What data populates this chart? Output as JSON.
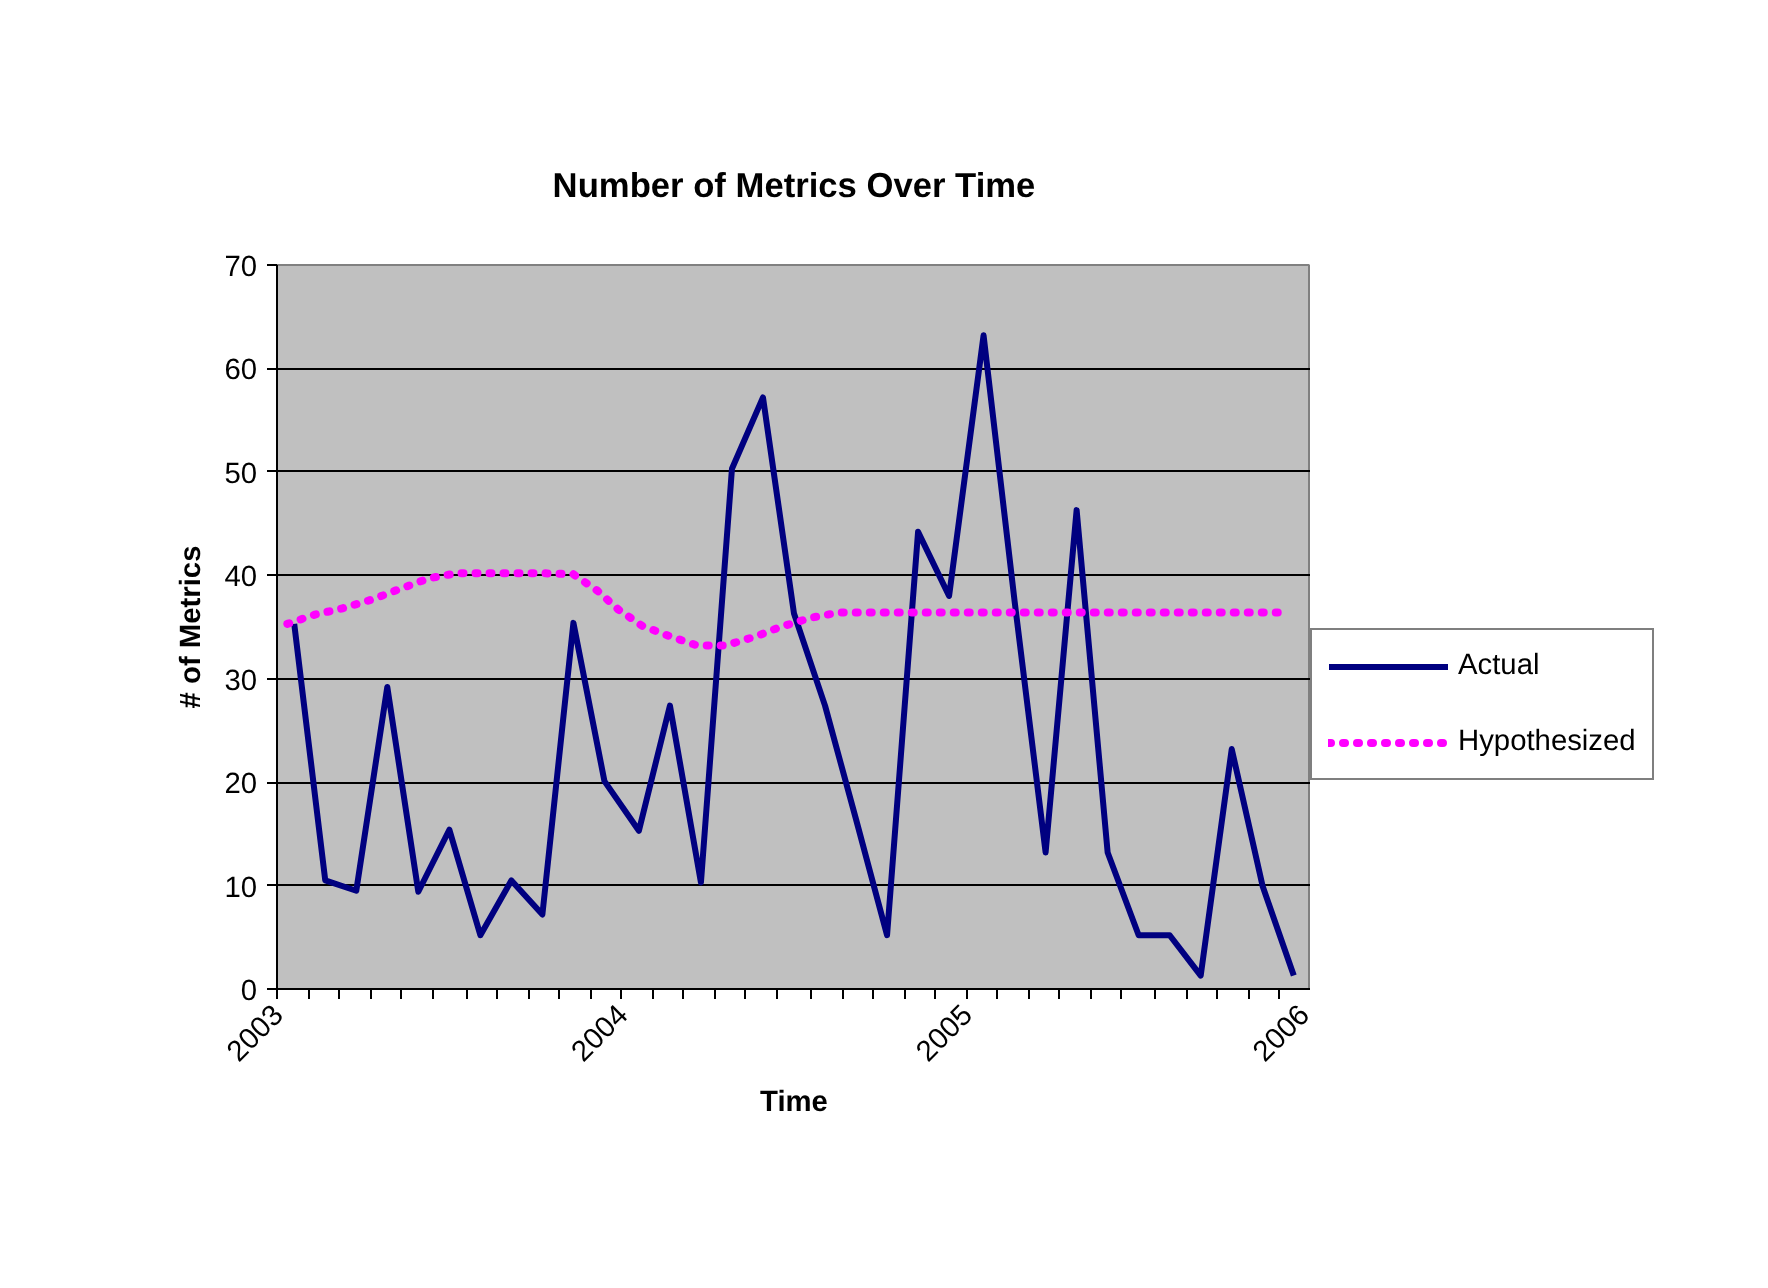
{
  "chart_data": {
    "type": "line",
    "title": "Number of Metrics Over Time",
    "xlabel": "Time",
    "ylabel": "# of Metrics",
    "xlim": [
      2003,
      2006
    ],
    "ylim": [
      0,
      70
    ],
    "yticks": [
      0,
      10,
      20,
      30,
      40,
      50,
      60,
      70
    ],
    "xticks": [
      2003,
      {
        "value": 2003.09,
        "label": null
      },
      {
        "value": 2003.18,
        "label": null
      },
      {
        "value": 2003.27,
        "label": null
      },
      {
        "value": 2003.36,
        "label": null
      },
      {
        "value": 2003.45,
        "label": null
      },
      {
        "value": 2003.55,
        "label": null
      },
      {
        "value": 2003.64,
        "label": null
      },
      {
        "value": 2003.73,
        "label": null
      },
      {
        "value": 2003.82,
        "label": null
      },
      {
        "value": 2003.91,
        "label": null
      },
      2004,
      {
        "value": 2004.09,
        "label": null
      },
      {
        "value": 2004.18,
        "label": null
      },
      {
        "value": 2004.27,
        "label": null
      },
      {
        "value": 2004.36,
        "label": null
      },
      {
        "value": 2004.45,
        "label": null
      },
      {
        "value": 2004.55,
        "label": null
      },
      {
        "value": 2004.64,
        "label": null
      },
      {
        "value": 2004.73,
        "label": null
      },
      {
        "value": 2004.82,
        "label": null
      },
      {
        "value": 2004.91,
        "label": null
      },
      2005,
      {
        "value": 2005.09,
        "label": null
      },
      {
        "value": 2005.18,
        "label": null
      },
      {
        "value": 2005.27,
        "label": null
      },
      {
        "value": 2005.36,
        "label": null
      },
      {
        "value": 2005.45,
        "label": null
      },
      {
        "value": 2005.55,
        "label": null
      },
      {
        "value": 2005.64,
        "label": null
      },
      {
        "value": 2005.73,
        "label": null
      },
      {
        "value": 2005.82,
        "label": null
      },
      {
        "value": 2005.91,
        "label": null
      },
      2006
    ],
    "grid": "y",
    "legend": "right",
    "marker": "none",
    "series": [
      {
        "name": "Actual",
        "color": "#000080",
        "line_style": "solid",
        "x": [
          2003.05,
          2003.14,
          2003.23,
          2003.32,
          2003.41,
          2003.5,
          2003.59,
          2003.68,
          2003.77,
          2003.86,
          2003.95,
          2004.05,
          2004.14,
          2004.23,
          2004.32,
          2004.41,
          2004.5,
          2004.59,
          2004.68,
          2004.77,
          2004.86,
          2004.95,
          2005.05,
          2005.14,
          2005.23,
          2005.32,
          2005.41,
          2005.5,
          2005.59,
          2005.68,
          2005.77,
          2005.86,
          2005.95
        ],
        "values": [
          35.3,
          10.5,
          9.5,
          29.2,
          9.4,
          15.4,
          5.2,
          10.5,
          7.2,
          35.4,
          20.1,
          15.3,
          27.4,
          10.3,
          50.3,
          57.2,
          36.3,
          27.4,
          16.4,
          5.2,
          44.2,
          38.0,
          63.2,
          37.5,
          13.2,
          46.3,
          13.2,
          5.2,
          5.2,
          1.3,
          23.2,
          9.9,
          1.3
        ]
      },
      {
        "name": "Hypothesized",
        "color": "#ff00ff",
        "line_style": "dotted",
        "x": [
          2003.03,
          2003.11,
          2003.19,
          2003.28,
          2003.35,
          2003.44,
          2003.52,
          2003.6,
          2003.69,
          2003.77,
          2003.86,
          2003.93,
          2003.99,
          2004.06,
          2004.14,
          2004.22,
          2004.3,
          2004.39,
          2004.46,
          2004.55,
          2004.63,
          2004.71,
          2004.8,
          2004.88,
          2004.97,
          2005.05,
          2005.14,
          2005.23,
          2005.31,
          2005.4,
          2005.48,
          2005.57,
          2005.65,
          2005.74,
          2005.82,
          2005.91
        ],
        "values": [
          35.3,
          36.2,
          36.8,
          37.7,
          38.6,
          39.7,
          40.2,
          40.2,
          40.2,
          40.2,
          40.1,
          38.5,
          36.7,
          35.1,
          34.1,
          33.2,
          33.2,
          34.1,
          35.0,
          35.9,
          36.4,
          36.4,
          36.4,
          36.4,
          36.4,
          36.4,
          36.4,
          36.4,
          36.4,
          36.4,
          36.4,
          36.4,
          36.4,
          36.4,
          36.4,
          36.4
        ]
      }
    ]
  }
}
